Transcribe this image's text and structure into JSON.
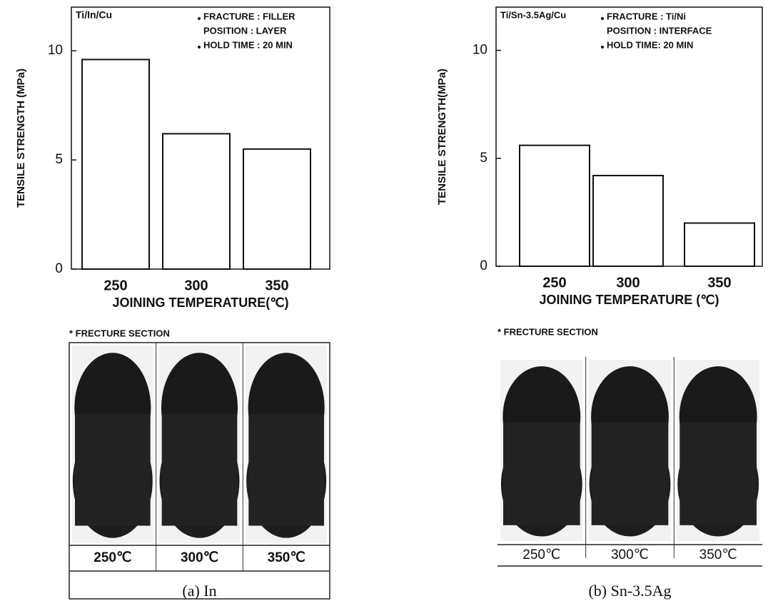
{
  "chart_data": [
    {
      "type": "bar",
      "title": "Ti/In/Cu",
      "annotations": [
        "FRACTURE : FILLER",
        "POSITION : LAYER",
        "HOLD TIME : 20 MIN"
      ],
      "x_label": "JOINING  TEMPERATURE(℃)",
      "y_label": "TENSILE  STRENGTH (MPa)",
      "categories": [
        "250",
        "300",
        "350"
      ],
      "values": [
        9.6,
        6.2,
        5.5
      ],
      "color": "#ffffff",
      "ylim": [
        0,
        12
      ],
      "yticks": [
        0,
        5,
        10
      ],
      "grid": false
    },
    {
      "type": "bar",
      "title": "Ti/Sn-3.5Ag/Cu",
      "annotations": [
        "FRACTURE : Ti/Ni",
        "POSITION : INTERFACE",
        "HOLD TIME: 20 MIN"
      ],
      "x_label": "JOINING  TEMPERATURE (℃)",
      "y_label": "TENSILE  STRENGTH(MPa)",
      "categories": [
        "250",
        "300",
        "350"
      ],
      "values": [
        5.6,
        4.2,
        2.0
      ],
      "color": "#ffffff",
      "ylim": [
        0,
        12
      ],
      "yticks": [
        0,
        5,
        10
      ],
      "grid": false
    }
  ],
  "sections": [
    {
      "heading": "* FRECTURE SECTION",
      "labels": [
        "250℃",
        "300℃",
        "350℃"
      ],
      "caption": "(a)  In"
    },
    {
      "heading": "* FRECTURE SECTION",
      "labels": [
        "250℃",
        "300℃",
        "350℃"
      ],
      "caption": "(b)  Sn-3.5Ag"
    }
  ]
}
